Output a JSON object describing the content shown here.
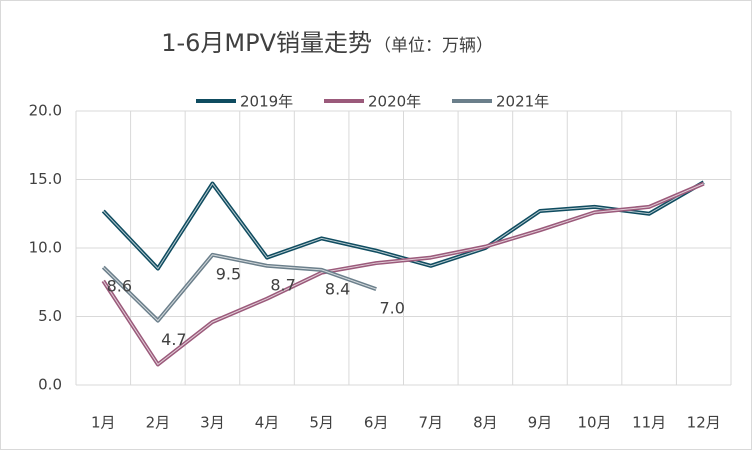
{
  "chart_data": {
    "type": "line",
    "title": "1-6月MPV销量走势",
    "subtitle": "（单位：万辆）",
    "categories": [
      "1月",
      "2月",
      "3月",
      "4月",
      "5月",
      "6月",
      "7月",
      "8月",
      "9月",
      "10月",
      "11月",
      "12月"
    ],
    "series": [
      {
        "name": "2019年",
        "color": "#0f4c60",
        "values": [
          12.7,
          8.5,
          14.7,
          9.3,
          10.7,
          9.8,
          8.7,
          10.0,
          12.7,
          13.0,
          12.5,
          14.8
        ]
      },
      {
        "name": "2020年",
        "color": "#9b5a7b",
        "values": [
          7.6,
          1.5,
          4.6,
          6.3,
          8.2,
          8.9,
          9.3,
          10.1,
          11.3,
          12.6,
          13.0,
          14.7
        ]
      },
      {
        "name": "2021年",
        "color": "#6b7f8b",
        "values": [
          8.6,
          4.7,
          9.5,
          8.7,
          8.4,
          7.0,
          null,
          null,
          null,
          null,
          null,
          null
        ],
        "value_labels": [
          "8.6",
          "4.7",
          "9.5",
          "8.7",
          "8.4",
          "7.0",
          null,
          null,
          null,
          null,
          null,
          null
        ]
      }
    ],
    "ylim": [
      0,
      20
    ],
    "yticks": [
      {
        "value": 0,
        "label": "0.0"
      },
      {
        "value": 5,
        "label": "5.0"
      },
      {
        "value": 10,
        "label": "10.0"
      },
      {
        "value": 15,
        "label": "15.0"
      },
      {
        "value": 20,
        "label": "20.0"
      }
    ],
    "grid": true,
    "legend": "top"
  }
}
